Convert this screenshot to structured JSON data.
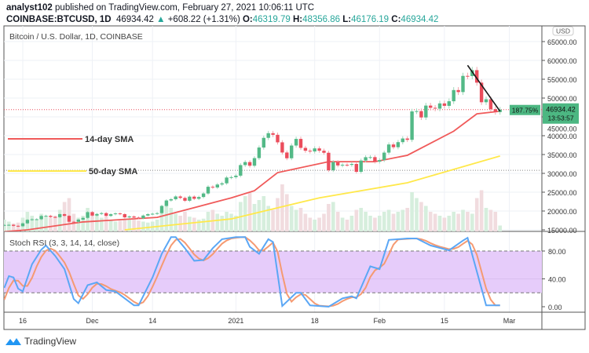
{
  "header": {
    "publisher": "analyst102",
    "published_text": "published on TradingView.com, February 27, 2021 10:06:11 UTC",
    "symbol": "COINBASE:BTCUSD, 1D",
    "last": "46934.42",
    "change": "+608.22 (+1.31%)",
    "open_label": "O:",
    "open": "46319.79",
    "high_label": "H:",
    "high": "48356.86",
    "low_label": "L:",
    "low": "46176.19",
    "close_label": "C:",
    "close": "46934.42"
  },
  "footer": {
    "brand": "TradingView"
  },
  "colors": {
    "up": "#53b987",
    "down": "#eb4d5c",
    "sma14": "#f05a5a",
    "sma50": "#ffe84a",
    "stoch_k": "#5ba7f5",
    "stoch_d": "#f59a72",
    "stoch_band": "#e6ccfa",
    "trendline": "#1a1a1a"
  },
  "chart_data": [
    {
      "type": "candlestick",
      "title": "Bitcoin / U.S. Dollar, 1D, COINBASE",
      "currency": "USD",
      "start_date": "2020-11-12",
      "ylim": [
        15000,
        66500
      ],
      "y_ticks": [
        "15000.00",
        "20000.00",
        "25000.00",
        "30000.00",
        "35000.00",
        "40000.00",
        "45000.00",
        "50000.00",
        "55000.00",
        "60000.00",
        "65000.00"
      ],
      "x_ticks": [
        {
          "label": "16",
          "date": "2020-11-16"
        },
        {
          "label": "Dec",
          "date": "2020-12-01"
        },
        {
          "label": "14",
          "date": "2020-12-14"
        },
        {
          "label": "2021",
          "date": "2021-01-01"
        },
        {
          "label": "18",
          "date": "2021-01-18"
        },
        {
          "label": "Feb",
          "date": "2021-02-01"
        },
        {
          "label": "15",
          "date": "2021-02-15"
        },
        {
          "label": "Mar",
          "date": "2021-03-01"
        }
      ],
      "close": [
        16300,
        16330,
        16070,
        15960,
        16730,
        17660,
        17800,
        17820,
        18680,
        18720,
        18420,
        18370,
        19160,
        18720,
        17150,
        17140,
        17720,
        18180,
        19700,
        18790,
        19220,
        19450,
        18700,
        19150,
        19360,
        19170,
        18320,
        18550,
        18260,
        18060,
        18800,
        19170,
        19270,
        19440,
        21350,
        22800,
        23130,
        23860,
        23480,
        22730,
        23820,
        23250,
        23720,
        24660,
        26440,
        26250,
        27040,
        27360,
        28890,
        28990,
        29390,
        32200,
        33000,
        32030,
        34050,
        36860,
        39430,
        40670,
        40240,
        38240,
        35540,
        34010,
        37390,
        39150,
        36770,
        36010,
        35820,
        36630,
        36010,
        35470,
        30830,
        33010,
        32100,
        32280,
        32260,
        32500,
        30410,
        33410,
        34290,
        34310,
        33110,
        33520,
        35510,
        37670,
        36950,
        38290,
        39260,
        38900,
        46450,
        46530,
        44850,
        48000,
        47410,
        47190,
        48580,
        47930,
        49150,
        52120,
        51590,
        55890,
        55840,
        57410,
        54090,
        48890,
        49680,
        47050,
        46280,
        46934.42
      ],
      "volume_relative": [
        12,
        10,
        8,
        9,
        14,
        20,
        16,
        12,
        18,
        15,
        14,
        16,
        22,
        30,
        34,
        18,
        14,
        16,
        24,
        20,
        16,
        14,
        15,
        12,
        10,
        11,
        13,
        12,
        12,
        11,
        10,
        9,
        10,
        12,
        22,
        30,
        24,
        18,
        16,
        20,
        15,
        14,
        12,
        13,
        20,
        22,
        18,
        16,
        20,
        18,
        16,
        30,
        36,
        40,
        28,
        32,
        36,
        26,
        22,
        34,
        48,
        38,
        26,
        22,
        24,
        18,
        14,
        12,
        14,
        18,
        28,
        30,
        20,
        14,
        12,
        16,
        22,
        24,
        20,
        16,
        14,
        16,
        20,
        22,
        18,
        20,
        22,
        24,
        40,
        34,
        30,
        26,
        20,
        18,
        16,
        14,
        16,
        20,
        18,
        22,
        20,
        18,
        34,
        42,
        24,
        22,
        20,
        6
      ],
      "sma14": [
        [
          "2020-11-12",
          14500
        ],
        [
          "2020-11-17",
          15000
        ],
        [
          "2020-11-29",
          17100
        ],
        [
          "2020-12-15",
          18300
        ],
        [
          "2020-12-31",
          23500
        ],
        [
          "2021-01-05",
          25400
        ],
        [
          "2021-01-10",
          30200
        ],
        [
          "2021-01-21",
          33100
        ],
        [
          "2021-01-31",
          33100
        ],
        [
          "2021-02-07",
          34800
        ],
        [
          "2021-02-17",
          41200
        ],
        [
          "2021-02-22",
          45800
        ],
        [
          "2021-02-27",
          46500
        ]
      ],
      "sma50": [
        [
          "2020-12-08",
          15000
        ],
        [
          "2020-12-31",
          17900
        ],
        [
          "2021-01-19",
          23500
        ],
        [
          "2021-02-07",
          27500
        ],
        [
          "2021-02-27",
          34600
        ]
      ],
      "last_price_label": "46934.42",
      "countdown": "13:53:57",
      "percent_badge": "187.75%",
      "horizontal_level": 30800,
      "trendline": [
        [
          "2021-02-20",
          58700
        ],
        [
          "2021-02-27",
          46500
        ]
      ],
      "legend": [
        {
          "name": "14-day SMA",
          "color": "#f05a5a"
        },
        {
          "name": "50-day SMA",
          "color": "#ffe84a"
        }
      ]
    },
    {
      "type": "line",
      "title": "Stoch RSI (3, 3, 14, 14, close)",
      "ylim": [
        0,
        100
      ],
      "y_ticks": [
        "0.00",
        "40.00",
        "80.00"
      ],
      "band": [
        20,
        80
      ],
      "k": [
        [
          "2020-11-12",
          27
        ],
        [
          "2020-11-13",
          44
        ],
        [
          "2020-11-14",
          42
        ],
        [
          "2020-11-15",
          26
        ],
        [
          "2020-11-16",
          22
        ],
        [
          "2020-11-18",
          61
        ],
        [
          "2020-11-20",
          82
        ],
        [
          "2020-11-21",
          88
        ],
        [
          "2020-11-23",
          73
        ],
        [
          "2020-11-25",
          54
        ],
        [
          "2020-11-27",
          11
        ],
        [
          "2020-11-28",
          5
        ],
        [
          "2020-11-30",
          31
        ],
        [
          "2020-12-02",
          35
        ],
        [
          "2020-12-04",
          24
        ],
        [
          "2020-12-06",
          22
        ],
        [
          "2020-12-10",
          2
        ],
        [
          "2020-12-11",
          2
        ],
        [
          "2020-12-14",
          42
        ],
        [
          "2020-12-16",
          76
        ],
        [
          "2020-12-18",
          100
        ],
        [
          "2020-12-19",
          100
        ],
        [
          "2020-12-21",
          84
        ],
        [
          "2020-12-23",
          66
        ],
        [
          "2020-12-25",
          67
        ],
        [
          "2020-12-27",
          84
        ],
        [
          "2020-12-29",
          97
        ],
        [
          "2021-01-01",
          100
        ],
        [
          "2021-01-03",
          100
        ],
        [
          "2021-01-04",
          86
        ],
        [
          "2021-01-06",
          76
        ],
        [
          "2021-01-08",
          97
        ],
        [
          "2021-01-09",
          93
        ],
        [
          "2021-01-11",
          1
        ],
        [
          "2021-01-14",
          20
        ],
        [
          "2021-01-15",
          20
        ],
        [
          "2021-01-17",
          2
        ],
        [
          "2021-01-21",
          0
        ],
        [
          "2021-01-24",
          12
        ],
        [
          "2021-01-26",
          15
        ],
        [
          "2021-01-27",
          12
        ],
        [
          "2021-01-30",
          58
        ],
        [
          "2021-02-01",
          54
        ],
        [
          "2021-02-03",
          96
        ],
        [
          "2021-02-07",
          98
        ],
        [
          "2021-02-09",
          98
        ],
        [
          "2021-02-12",
          88
        ],
        [
          "2021-02-16",
          81
        ],
        [
          "2021-02-19",
          95
        ],
        [
          "2021-02-20",
          99
        ],
        [
          "2021-02-24",
          2
        ],
        [
          "2021-02-27",
          2
        ]
      ]
    }
  ]
}
